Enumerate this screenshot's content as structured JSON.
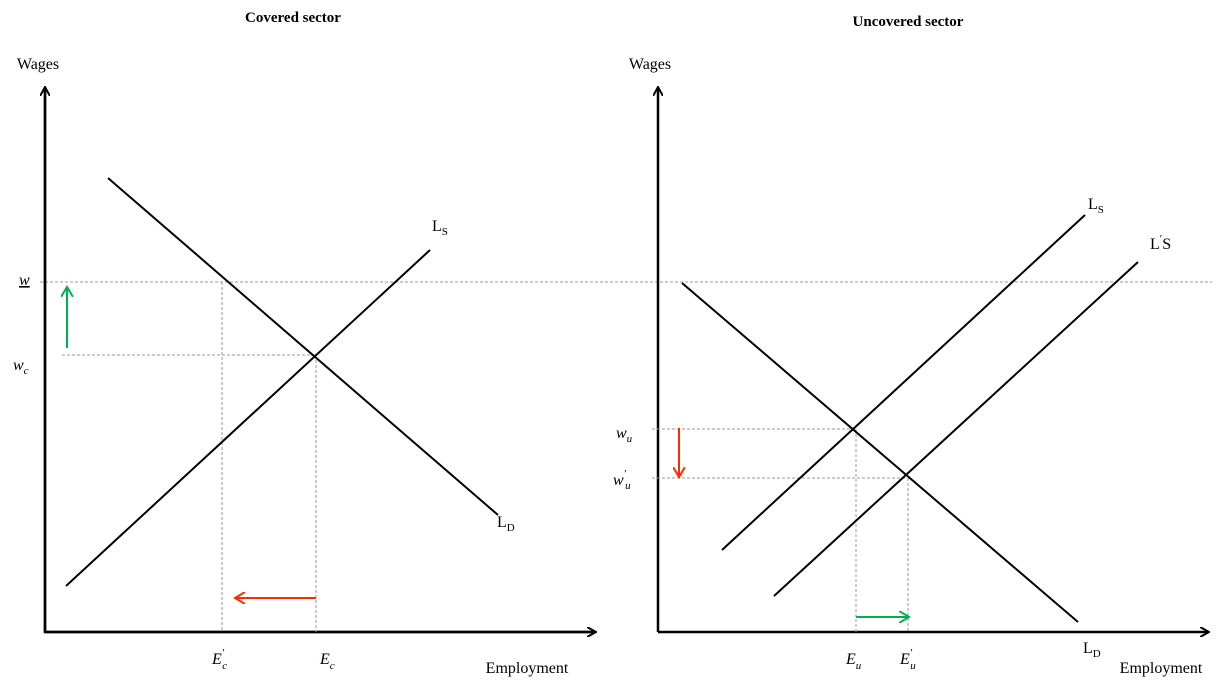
{
  "left": {
    "title": "Covered sector",
    "y_axis": "Wages",
    "x_axis": "Employment",
    "labels": {
      "ls": {
        "main": "L",
        "sub": "S"
      },
      "ld": {
        "main": "L",
        "sub": "D"
      },
      "w": {
        "main": "w"
      },
      "wc": {
        "main": "w",
        "sub": "c"
      },
      "ec_prime": {
        "main": "E",
        "prime": "′",
        "sub": "c"
      },
      "ec": {
        "main": "E",
        "sub": "c"
      }
    }
  },
  "right": {
    "title": "Uncovered sector",
    "y_axis": "Wages",
    "x_axis": "Employment",
    "labels": {
      "ls": {
        "main": "L",
        "sub": "S"
      },
      "ls_prime": {
        "main": "L",
        "prime": "′",
        "sub": "S"
      },
      "ld": {
        "main": "L",
        "sub": "D"
      },
      "wu": {
        "main": "w",
        "sub": "u"
      },
      "wu_prime": {
        "main": "w",
        "prime": "′",
        "sub": "u"
      },
      "eu": {
        "main": "E",
        "sub": "u"
      },
      "eu_prime": {
        "main": "E",
        "prime": "′",
        "sub": "u"
      }
    }
  }
}
